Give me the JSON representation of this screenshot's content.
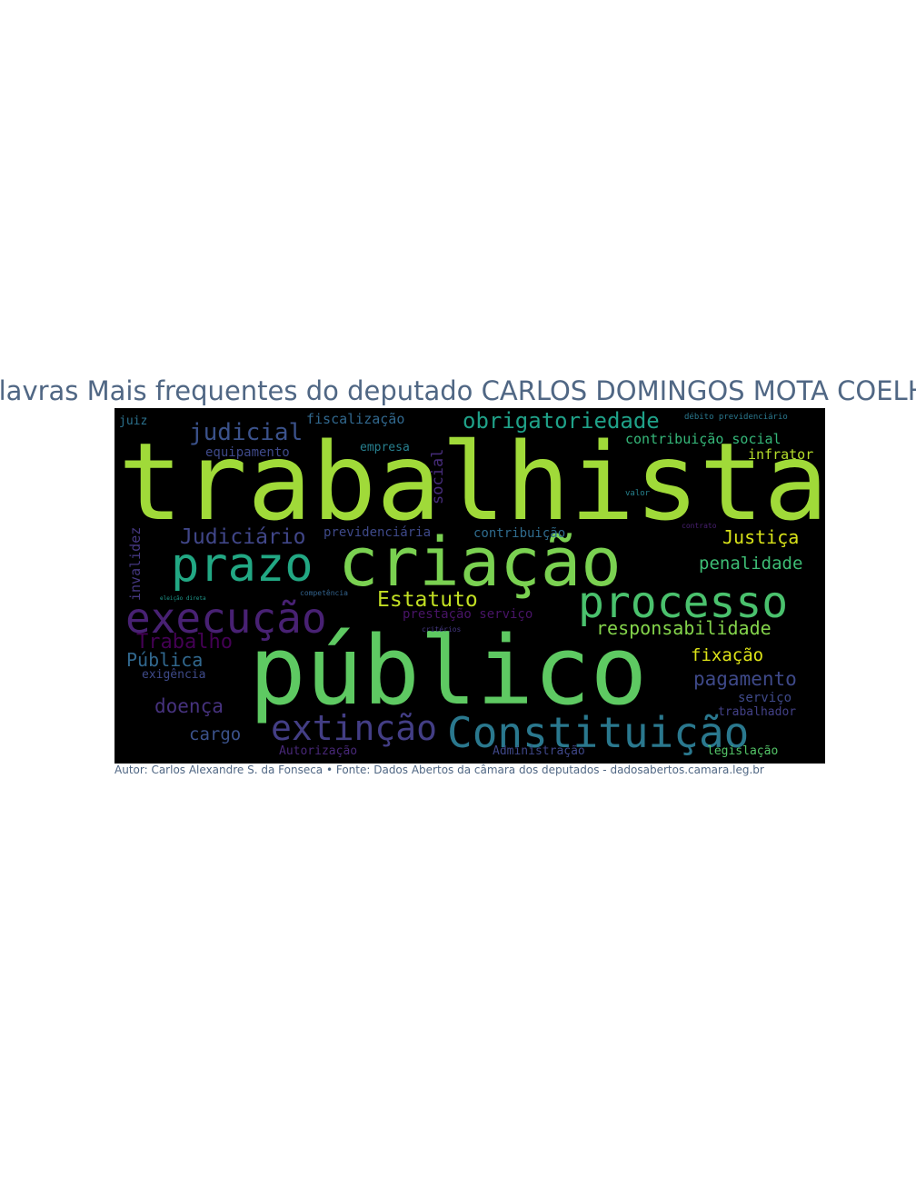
{
  "title": "Palavras Mais frequentes do deputado CARLOS DOMINGOS MOTA COELHO",
  "footer": "Autor: Carlos Alexandre S. da Fonseca • Fonte: Dados Abertos da câmara dos deputados - dadosabertos.camara.leg.br",
  "words": [
    "trabalhista",
    "criação",
    "público",
    "prazo",
    "processo",
    "execução",
    "Constituição",
    "extinção",
    "judicial",
    "obrigatoriedade",
    "fiscalização",
    "contribuição social",
    "infrator",
    "equipamento",
    "empresa",
    "juiz",
    "social",
    "Judiciário",
    "previdenciária",
    "contribuição",
    "Justiça",
    "penalidade",
    "invalidez",
    "Estatuto",
    "responsabilidade",
    "Trabalho",
    "prestação serviço",
    "Pública",
    "fixação",
    "exigência",
    "pagamento",
    "doença",
    "serviço",
    "trabalhador",
    "cargo",
    "Autorização",
    "Administração",
    "legislação",
    "débito previdenciário",
    "valor",
    "contrato",
    "competência",
    "critérios",
    "eleição direta"
  ]
}
